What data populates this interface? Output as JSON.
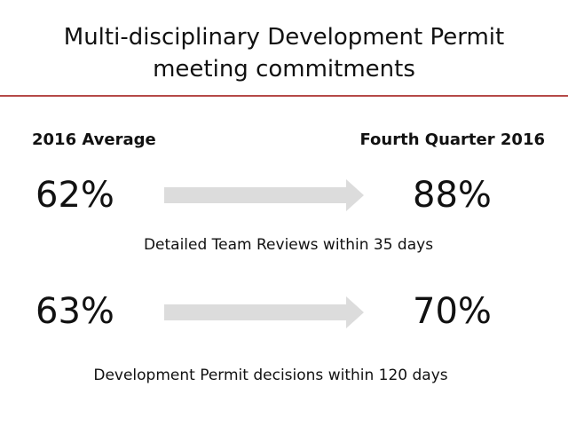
{
  "slide": {
    "title_line1": "Multi-disciplinary Development Permit",
    "title_line2": "meeting commitments",
    "column_left_header": "2016 Average",
    "column_right_header": "Fourth Quarter 2016",
    "metrics": [
      {
        "before": "62%",
        "after": "88%",
        "caption": "Detailed Team Reviews within 35 days"
      },
      {
        "before": "63%",
        "after": "70%",
        "caption": "Development Permit decisions within 120 days"
      }
    ],
    "colors": {
      "rule": "#b54a48",
      "arrow": "#dcdcdc",
      "text": "#111111"
    },
    "icons": {
      "arrow": "right-arrow-icon"
    }
  }
}
